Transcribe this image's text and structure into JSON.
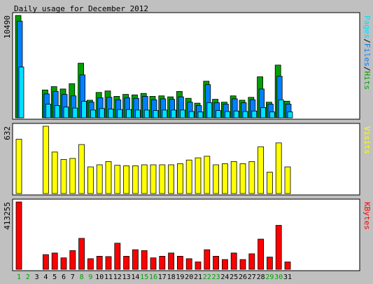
{
  "chart_data": {
    "type": "bar",
    "title": "Daily usage for December 2012",
    "categories": [
      "1",
      "2",
      "3",
      "4",
      "5",
      "6",
      "7",
      "8",
      "9",
      "10",
      "11",
      "12",
      "13",
      "14",
      "15",
      "16",
      "17",
      "18",
      "19",
      "20",
      "21",
      "22",
      "23",
      "24",
      "25",
      "26",
      "27",
      "28",
      "29",
      "30",
      "31"
    ],
    "weekend_days": [
      "1",
      "2",
      "8",
      "9",
      "15",
      "16",
      "22",
      "23",
      "29",
      "30"
    ],
    "panels": [
      {
        "id": "top",
        "max_label": "10490",
        "ymax": 10490,
        "right_label": [
          "Pages",
          "/",
          "Files",
          "/",
          "Hits"
        ],
        "series": [
          {
            "name": "Hits",
            "color": "#00a000",
            "values": [
              10490,
              0,
              0,
              2850,
              3200,
              2950,
              3500,
              5600,
              1800,
              2600,
              2750,
              2200,
              2400,
              2350,
              2500,
              2200,
              2250,
              2150,
              2700,
              2000,
              1500,
              3750,
              1900,
              1600,
              2250,
              1800,
              2100,
              4200,
              1600,
              5400,
              1700
            ]
          },
          {
            "name": "Files",
            "color": "#0080ff",
            "values": [
              9900,
              0,
              0,
              2450,
              2700,
              2400,
              2250,
              4400,
              1600,
              2050,
              2100,
              1850,
              2050,
              2000,
              2200,
              1850,
              1950,
              1900,
              2150,
              1600,
              1250,
              3400,
              1550,
              1400,
              1950,
              1550,
              1850,
              2950,
              1400,
              4250,
              1400
            ]
          },
          {
            "name": "Pages",
            "color": "#00e0ff",
            "values": [
              5200,
              0,
              0,
              1400,
              1250,
              1100,
              1000,
              1700,
              800,
              950,
              900,
              850,
              850,
              800,
              800,
              750,
              800,
              800,
              800,
              650,
              600,
              1550,
              750,
              650,
              700,
              650,
              700,
              1050,
              600,
              1850,
              600
            ]
          }
        ]
      },
      {
        "id": "middle",
        "max_label": "632",
        "ymax": 632,
        "right_label": [
          "Visits"
        ],
        "series": [
          {
            "name": "Visits",
            "color": "#ffff00",
            "values": [
              510,
              0,
              0,
              632,
              390,
              320,
              330,
              460,
              250,
              270,
              300,
              265,
              260,
              260,
              270,
              270,
              270,
              270,
              280,
              315,
              335,
              350,
              270,
              280,
              300,
              280,
              300,
              440,
              200,
              475,
              250
            ]
          }
        ]
      },
      {
        "id": "bottom",
        "max_label": "413255",
        "ymax": 413255,
        "right_label": [
          "KBytes"
        ],
        "series": [
          {
            "name": "KBytes",
            "color": "#ff0000",
            "values": [
              413255,
              0,
              0,
              90000,
              100000,
              70000,
              115000,
              190000,
              65000,
              80000,
              78000,
              160000,
              80000,
              120000,
              115000,
              70000,
              80000,
              100000,
              80000,
              65000,
              45000,
              120000,
              80000,
              60000,
              100000,
              60000,
              95000,
              185000,
              75000,
              270000,
              45000
            ]
          }
        ]
      }
    ]
  },
  "colors": {
    "background": "#c0c0c0",
    "panel": "#ffffff",
    "weekday_label": "#000000",
    "weekend_label": "#00a000",
    "pages_label": "#00e0ff",
    "files_label": "#0080ff",
    "hits_label": "#00a000",
    "visits_label": "#ffff00",
    "kbytes_label": "#ff0000"
  }
}
